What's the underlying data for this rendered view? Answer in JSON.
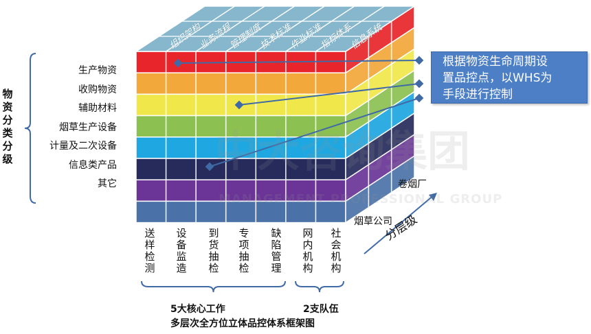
{
  "left_title": "物资分类分级",
  "row_labels": [
    "生产物资",
    "收购物资",
    "辅助材料",
    "烟草生产设备",
    "计量及二次设备",
    "信息类产品",
    "其它"
  ],
  "front_columns": [
    "送样检测",
    "设备监造",
    "到货抽检",
    "专项抽检",
    "缺陷管理",
    "网内机构",
    "社会机构"
  ],
  "top_labels": [
    "组织架构",
    "业务流程",
    "管理制度",
    "技术标准",
    "作业标准",
    "指标体系",
    "信息系统"
  ],
  "side_labels": {
    "upper": "卷烟厂",
    "lower": "烟草公司"
  },
  "axis_label": "分层级",
  "callout": {
    "line1": "根据物资生命周期设",
    "line2": "置品控点，以WHS为",
    "line3": "手段进行控制"
  },
  "brace_left_label": "5大核心工作",
  "brace_right_label": "2支队伍",
  "caption": "多层次全方位立体品控体系框架图",
  "watermark": {
    "main": "中大咨询集团",
    "sub": "MANAGEMENT PROFESSIONAL GROUP"
  },
  "colors": {
    "layers": [
      "#e8252b",
      "#f3a83b",
      "#f0e84a",
      "#8cc152",
      "#1ea7e1",
      "#262b5b",
      "#6a3596",
      "#4a72a8"
    ],
    "top": "#86b7cd",
    "callout": "#4c7fc6",
    "line": "#3f6aa6"
  }
}
